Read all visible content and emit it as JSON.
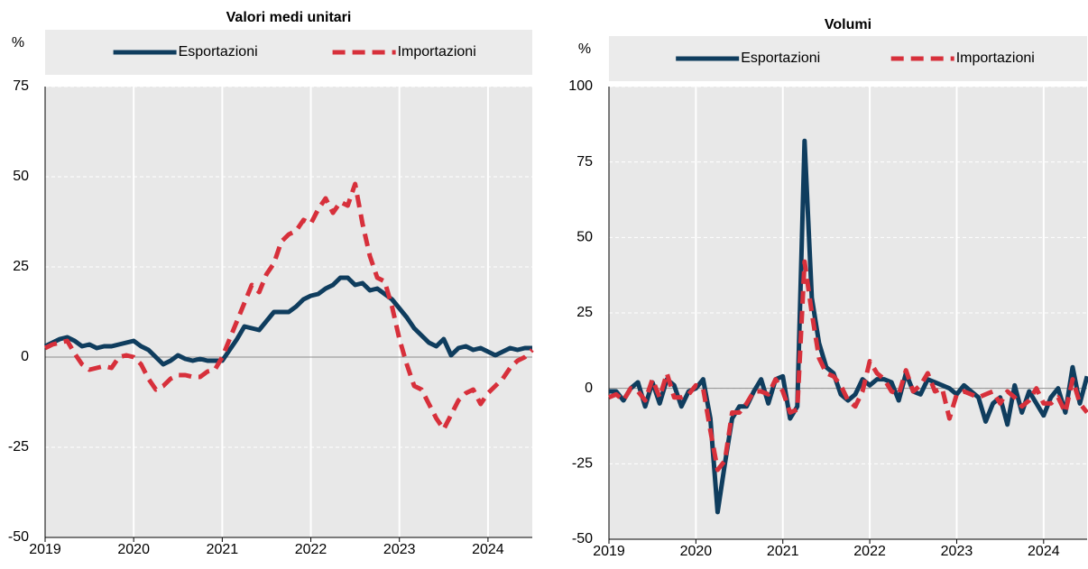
{
  "chart_data": [
    {
      "type": "line",
      "title": "Valori medi unitari",
      "ylabel": "%",
      "categories": [
        "2019",
        null,
        null,
        null,
        null,
        null,
        null,
        null,
        null,
        null,
        null,
        null,
        "2020",
        null,
        null,
        null,
        null,
        null,
        null,
        null,
        null,
        null,
        null,
        null,
        "2021",
        null,
        null,
        null,
        null,
        null,
        null,
        null,
        null,
        null,
        null,
        null,
        "2022",
        null,
        null,
        null,
        null,
        null,
        null,
        null,
        null,
        null,
        null,
        null,
        "2023",
        null,
        null,
        null,
        null,
        null,
        null,
        null,
        null,
        null,
        null,
        null,
        "2024",
        null,
        null,
        null,
        null,
        null,
        null
      ],
      "ylim": [
        -50,
        75
      ],
      "yticks": [
        -50,
        -25,
        0,
        25,
        50,
        75
      ],
      "grid": true,
      "legend": "top",
      "series": [
        {
          "name": "Esportazioni",
          "color": "#0f3d5e",
          "style": "solid",
          "values": [
            3,
            4,
            5,
            5.5,
            4.5,
            3,
            3.5,
            2.5,
            3,
            3,
            3.5,
            4,
            4.5,
            3,
            2,
            0,
            -2,
            -1,
            0.5,
            -0.5,
            -1,
            -0.5,
            -1,
            -1,
            -1,
            2,
            5,
            8.5,
            8,
            7.5,
            10,
            12.5,
            12.5,
            12.5,
            14,
            16,
            17,
            17.5,
            19,
            20,
            22,
            22,
            20,
            20.5,
            18.5,
            19,
            17.5,
            16,
            13.5,
            11,
            8,
            6,
            4,
            3,
            5,
            0.5,
            2.5,
            3,
            2,
            2.5,
            1.5,
            0.5,
            1.5,
            2.5,
            2,
            2.5,
            2.5
          ]
        },
        {
          "name": "Importazioni",
          "color": "#d7303b",
          "style": "dashed",
          "values": [
            2.5,
            3.5,
            4,
            4.5,
            1,
            -2,
            -3.5,
            -3,
            -2.5,
            -3,
            0,
            0.5,
            0,
            -2,
            -6,
            -9,
            -8,
            -6,
            -5,
            -5,
            -5.5,
            -5.5,
            -4,
            -3.5,
            0,
            5,
            10,
            15,
            20,
            18,
            23,
            26,
            32,
            34,
            35,
            38,
            37,
            41,
            44,
            40,
            43,
            42,
            48,
            37,
            28,
            22,
            21,
            14,
            5,
            -2,
            -8,
            -9,
            -13,
            -17,
            -20,
            -16,
            -12,
            -10,
            -9,
            -13,
            -10,
            -8,
            -6,
            -3,
            -1,
            0,
            2
          ]
        }
      ]
    },
    {
      "type": "line",
      "title": "Volumi",
      "ylabel": "%",
      "categories": [
        "2019",
        null,
        null,
        null,
        null,
        null,
        null,
        null,
        null,
        null,
        null,
        null,
        "2020",
        null,
        null,
        null,
        null,
        null,
        null,
        null,
        null,
        null,
        null,
        null,
        "2021",
        null,
        null,
        null,
        null,
        null,
        null,
        null,
        null,
        null,
        null,
        null,
        "2022",
        null,
        null,
        null,
        null,
        null,
        null,
        null,
        null,
        null,
        null,
        null,
        "2023",
        null,
        null,
        null,
        null,
        null,
        null,
        null,
        null,
        null,
        null,
        null,
        "2024",
        null,
        null,
        null,
        null,
        null,
        null
      ],
      "ylim": [
        -50,
        100
      ],
      "yticks": [
        -50,
        -25,
        0,
        25,
        50,
        75,
        100
      ],
      "grid": true,
      "legend": "top",
      "series": [
        {
          "name": "Esportazioni",
          "color": "#0f3d5e",
          "style": "solid",
          "values": [
            -1,
            -1,
            -4,
            0,
            2,
            -6,
            2,
            -5,
            3,
            1,
            -6,
            -1,
            0,
            3,
            -10,
            -41,
            -25,
            -10,
            -6,
            -6,
            -1,
            3,
            -5,
            3,
            4,
            -10,
            -6,
            82,
            30,
            15,
            7,
            5,
            -2,
            -4,
            -2,
            3,
            1,
            3,
            3,
            2,
            -4,
            5,
            -1,
            -2,
            3,
            2,
            1,
            0,
            -2,
            1,
            -1,
            -3,
            -11,
            -5,
            -3,
            -12,
            1,
            -8,
            -1,
            -5,
            -9,
            -3,
            0,
            -8,
            7,
            -5,
            4
          ]
        },
        {
          "name": "Importazioni",
          "color": "#d7303b",
          "style": "dashed",
          "values": [
            -3,
            -2,
            -4,
            0,
            -1,
            -4,
            3,
            -3,
            5,
            -3,
            -3,
            -2,
            1,
            0,
            -14,
            -27,
            -24,
            -8,
            -8,
            -5,
            -1,
            -1,
            -2,
            3,
            -1,
            -8,
            -7,
            42,
            25,
            10,
            5,
            4,
            1,
            -4,
            -6,
            -1,
            9,
            5,
            3,
            -1,
            -2,
            6,
            -1,
            1,
            5,
            -1,
            0,
            -10,
            -2,
            -1,
            -2,
            -3,
            -2,
            -1,
            -5,
            -1,
            -3,
            -6,
            -4,
            0,
            -5,
            -5,
            -3,
            -8,
            3,
            -5,
            -8
          ]
        }
      ]
    }
  ]
}
